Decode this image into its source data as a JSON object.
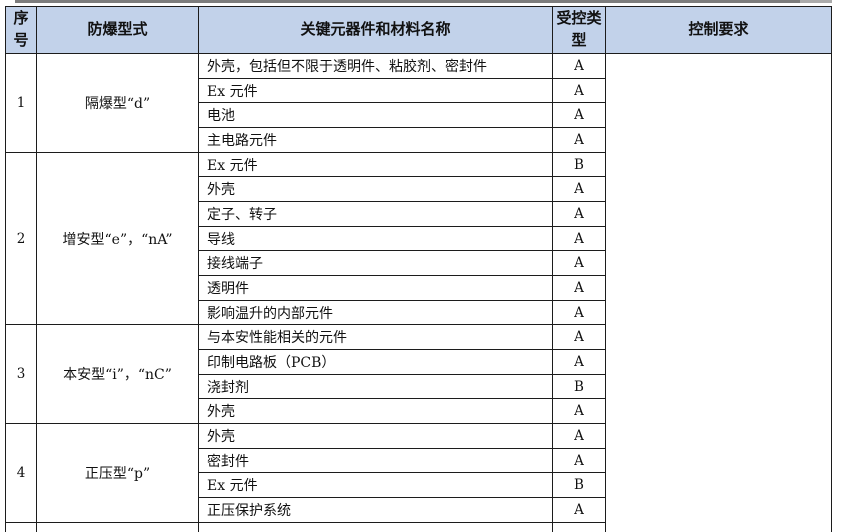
{
  "table": {
    "columns": [
      "序号",
      "防爆型式",
      "关键元器件和材料名称",
      "受控类型",
      "控制要求"
    ],
    "groups": [
      {
        "no": "1",
        "type": "隔爆型“d”",
        "rows": [
          {
            "name": "外壳，包括但不限于透明件、粘胶剂、密封件",
            "ctrl": "A"
          },
          {
            "name": "Ex 元件",
            "ctrl": "A"
          },
          {
            "name": "电池",
            "ctrl": "A"
          },
          {
            "name": "主电路元件",
            "ctrl": "A"
          }
        ]
      },
      {
        "no": "2",
        "type": "增安型“e”，“nA”",
        "rows": [
          {
            "name": "Ex 元件",
            "ctrl": "B"
          },
          {
            "name": "外壳",
            "ctrl": "A"
          },
          {
            "name": "定子、转子",
            "ctrl": "A"
          },
          {
            "name": "导线",
            "ctrl": "A"
          },
          {
            "name": "接线端子",
            "ctrl": "A"
          },
          {
            "name": "透明件",
            "ctrl": "A"
          },
          {
            "name": "影响温升的内部元件",
            "ctrl": "A"
          }
        ]
      },
      {
        "no": "3",
        "type": "本安型“i”，“nC”",
        "rows": [
          {
            "name": "与本安性能相关的元件",
            "ctrl": "A"
          },
          {
            "name": "印制电路板（PCB）",
            "ctrl": "A"
          },
          {
            "name": "浇封剂",
            "ctrl": "B"
          },
          {
            "name": "外壳",
            "ctrl": "A"
          }
        ]
      },
      {
        "no": "4",
        "type": "正压型“p”",
        "rows": [
          {
            "name": "外壳",
            "ctrl": "A"
          },
          {
            "name": "密封件",
            "ctrl": "A"
          },
          {
            "name": "Ex 元件",
            "ctrl": "B"
          },
          {
            "name": "正压保护系统",
            "ctrl": "A"
          }
        ]
      }
    ],
    "control_requirement": "",
    "partial_next_group": {
      "no": "",
      "type": "",
      "name": "",
      "ctrl": ""
    }
  },
  "colors": {
    "header_bg": "#c2d2ea",
    "border": "#1c1c1c"
  }
}
